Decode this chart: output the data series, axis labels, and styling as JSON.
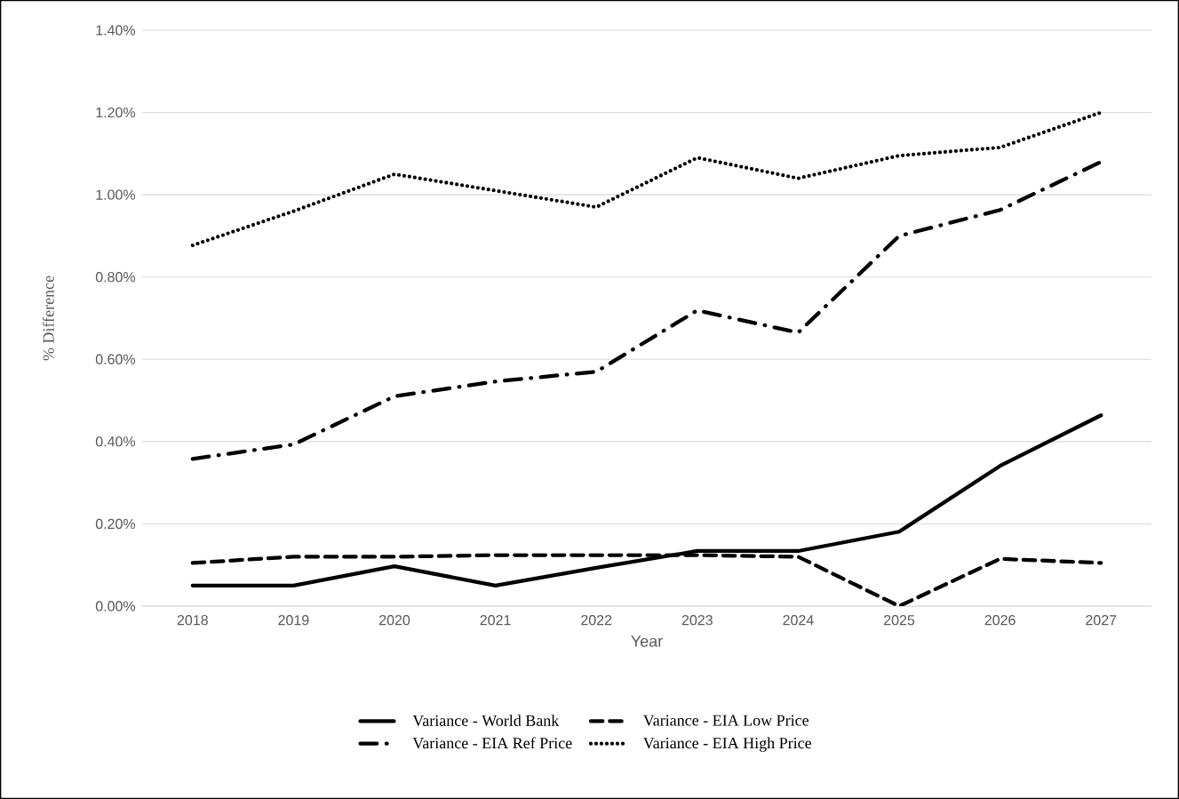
{
  "chart_data": {
    "type": "line",
    "xlabel": "Year",
    "ylabel": "% Difference",
    "categories": [
      "2018",
      "2019",
      "2020",
      "2021",
      "2022",
      "2023",
      "2024",
      "2025",
      "2026",
      "2027"
    ],
    "series": [
      {
        "name": "Variance - World Bank",
        "color": "#000000",
        "line_style": "solid",
        "values": [
          0.05,
          0.05,
          0.097,
          0.05,
          0.093,
          0.134,
          0.134,
          0.181,
          0.341,
          0.464
        ]
      },
      {
        "name": "Variance - EIA Low Price",
        "color": "#000000",
        "line_style": "dashed",
        "values": [
          0.105,
          0.12,
          0.12,
          0.124,
          0.124,
          0.124,
          0.12,
          0.0,
          0.115,
          0.105
        ]
      },
      {
        "name": "Variance - EIA Ref Price",
        "color": "#000000",
        "line_style": "dashdot",
        "values": [
          0.358,
          0.393,
          0.51,
          0.546,
          0.57,
          0.719,
          0.665,
          0.9,
          0.963,
          1.08
        ]
      },
      {
        "name": "Variance - EIA High Price",
        "color": "#000000",
        "line_style": "dotted",
        "values": [
          0.877,
          0.96,
          1.05,
          1.01,
          0.97,
          1.09,
          1.04,
          1.095,
          1.115,
          1.2
        ]
      }
    ],
    "ylim": [
      0,
      1.4
    ],
    "yticks": [
      {
        "value": 0,
        "label": "0.00%"
      },
      {
        "value": 0.2,
        "label": "0.20%"
      },
      {
        "value": 0.4,
        "label": "0.40%"
      },
      {
        "value": 0.6,
        "label": "0.60%"
      },
      {
        "value": 0.8,
        "label": "0.80%"
      },
      {
        "value": 1.0,
        "label": "1.00%"
      },
      {
        "value": 1.2,
        "label": "1.20%"
      },
      {
        "value": 1.4,
        "label": "1.40%"
      }
    ],
    "grid": "y",
    "legend": "bottom"
  }
}
